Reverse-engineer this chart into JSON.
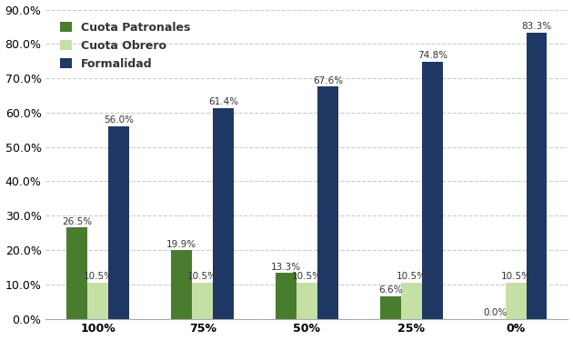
{
  "categories": [
    "100%",
    "75%",
    "50%",
    "25%",
    "0%"
  ],
  "series": [
    {
      "name": "Cuota Patronales",
      "values": [
        26.5,
        19.9,
        13.3,
        6.6,
        0.0
      ],
      "color": "#4a7c2f"
    },
    {
      "name": "Cuota Obrero",
      "values": [
        10.5,
        10.5,
        10.5,
        10.5,
        10.5
      ],
      "color": "#c5e0a5"
    },
    {
      "name": "Formalidad",
      "values": [
        56.0,
        61.4,
        67.6,
        74.8,
        83.3
      ],
      "color": "#1f3864"
    }
  ],
  "ylim": [
    0,
    90
  ],
  "yticks": [
    0,
    10,
    20,
    30,
    40,
    50,
    60,
    70,
    80,
    90
  ],
  "ytick_labels": [
    "0.0%",
    "10.0%",
    "20.0%",
    "30.0%",
    "40.0%",
    "50.0%",
    "60.0%",
    "70.0%",
    "80.0%",
    "90.0%"
  ],
  "background_color": "#ffffff",
  "plot_bg_color": "#ffffff",
  "grid_color": "#cccccc",
  "bar_width": 0.2,
  "legend_fontsize": 9,
  "tick_fontsize": 9,
  "label_fontsize": 7.5,
  "xaxis_line_color": "#aaaaaa"
}
